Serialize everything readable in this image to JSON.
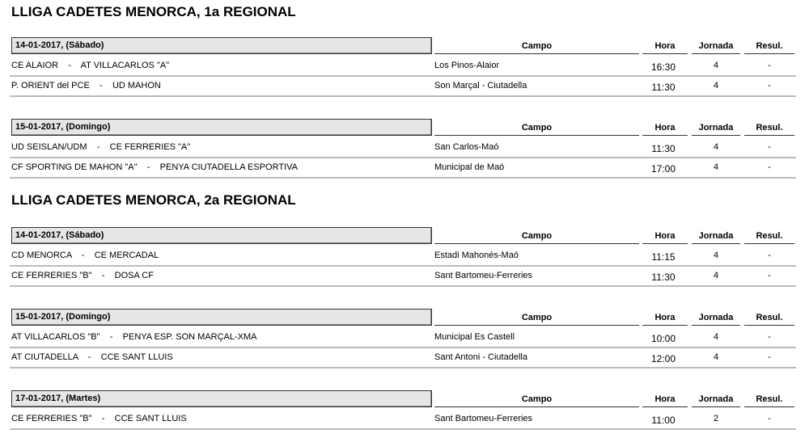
{
  "columns": {
    "campo": "Campo",
    "hora": "Hora",
    "jornada": "Jornada",
    "resul": "Resul."
  },
  "sections": [
    {
      "title": "LLIGA CADETES MENORCA, 1a REGIONAL",
      "groups": [
        {
          "date": "14-01-2017,  (Sábado)",
          "rows": [
            {
              "home": "CE ALAIOR",
              "away": "AT VILLACARLOS \"A\"",
              "campo": "Los Pinos-Alaior",
              "hora": "16:30",
              "jornada": "4",
              "resul": "-"
            },
            {
              "home": "P. ORIENT del PCE",
              "away": "UD MAHON",
              "campo": "Son Marçal - Ciutadella",
              "hora": "11:30",
              "jornada": "4",
              "resul": "-"
            }
          ]
        },
        {
          "date": "15-01-2017,  (Domingo)",
          "rows": [
            {
              "home": "UD SEISLAN/UDM",
              "away": "CE FERRERIES \"A\"",
              "campo": "San Carlos-Maó",
              "hora": "11:30",
              "jornada": "4",
              "resul": "-"
            },
            {
              "home": "CF SPORTING DE MAHON \"A\"",
              "away": "PENYA CIUTADELLA ESPORTIVA",
              "campo": "Municipal de Maó",
              "hora": "17:00",
              "jornada": "4",
              "resul": "-"
            }
          ]
        }
      ]
    },
    {
      "title": "LLIGA CADETES MENORCA, 2a REGIONAL",
      "groups": [
        {
          "date": "14-01-2017,  (Sábado)",
          "rows": [
            {
              "home": "CD MENORCA",
              "away": "CE MERCADAL",
              "campo": "Estadi Mahonés-Maó",
              "hora": "11:15",
              "jornada": "4",
              "resul": "-"
            },
            {
              "home": "CE FERRERIES \"B\"",
              "away": "DOSA CF",
              "campo": "Sant Bartomeu-Ferreries",
              "hora": "11:30",
              "jornada": "4",
              "resul": "-"
            }
          ]
        },
        {
          "date": "15-01-2017,  (Domingo)",
          "rows": [
            {
              "home": "AT VILLACARLOS \"B\"",
              "away": "PENYA ESP. SON MARÇAL-XMA",
              "campo": "Municipal Es Castell",
              "hora": "10:00",
              "jornada": "4",
              "resul": "-"
            },
            {
              "home": "AT CIUTADELLA",
              "away": "CCE SANT LLUIS",
              "campo": "Sant Antoni - Ciutadella",
              "hora": "12:00",
              "jornada": "4",
              "resul": "-"
            }
          ]
        },
        {
          "date": "17-01-2017,  (Martes)",
          "rows": [
            {
              "home": "CE FERRERIES \"B\"",
              "away": "CCE SANT LLUIS",
              "campo": "Sant Bartomeu-Ferreries",
              "hora": "11:00",
              "jornada": "2",
              "resul": "-"
            }
          ]
        }
      ]
    }
  ]
}
